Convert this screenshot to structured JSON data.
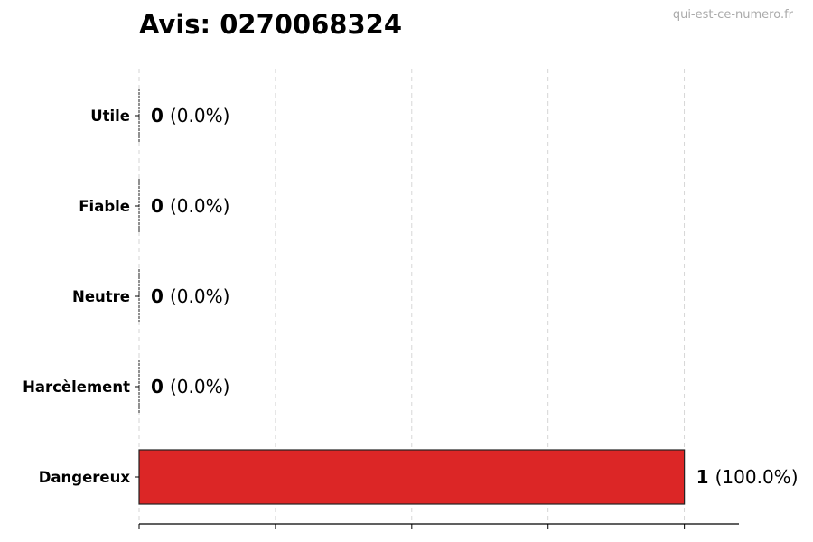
{
  "watermark": "qui-est-ce-numero.fr",
  "chart_data": {
    "type": "bar",
    "orientation": "horizontal",
    "title": "Avis: 0270068324",
    "categories": [
      "Utile",
      "Fiable",
      "Neutre",
      "Harcèlement",
      "Dangereux"
    ],
    "values": [
      0,
      0,
      0,
      0,
      1
    ],
    "value_labels": [
      "0",
      "0",
      "0",
      "0",
      "1"
    ],
    "percent_labels": [
      "(0.0%)",
      "(0.0%)",
      "(0.0%)",
      "(0.0%)",
      "(100.0%)"
    ],
    "xlim": [
      0,
      1.1
    ],
    "xticks": [
      0,
      0.25,
      0.5,
      0.75,
      1.0
    ],
    "xtick_labels_shown": false,
    "grid": "x-dashed",
    "bar_color": "#dc2626",
    "bar_edge_color": "#222222",
    "legend": "none"
  }
}
